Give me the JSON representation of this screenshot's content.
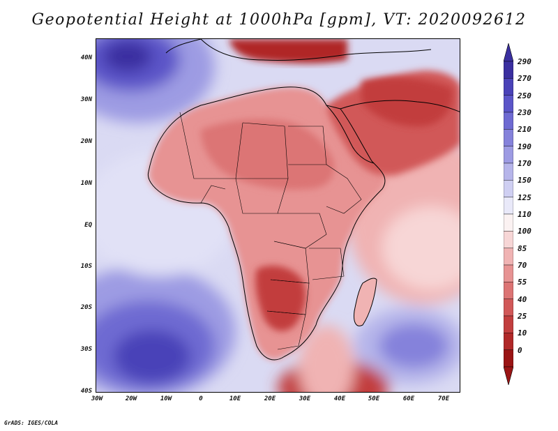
{
  "title": "Geopotential Height at 1000hPa [gpm], VT: 2020092612",
  "credit": "GrADS: IGES/COLA",
  "axes": {
    "y_labels": [
      "40N",
      "30N",
      "20N",
      "10N",
      "EQ",
      "10S",
      "20S",
      "30S",
      "40S"
    ],
    "x_labels": [
      "30W",
      "20W",
      "10W",
      "0",
      "10E",
      "20E",
      "30E",
      "40E",
      "50E",
      "60E",
      "70E"
    ]
  },
  "colorbar": {
    "labels": [
      "290",
      "270",
      "250",
      "230",
      "210",
      "190",
      "170",
      "150",
      "125",
      "110",
      "100",
      "85",
      "70",
      "55",
      "40",
      "25",
      "10",
      "0"
    ],
    "colors": [
      "#3a2fa0",
      "#4a42b8",
      "#5b55c8",
      "#6e6ad2",
      "#8582db",
      "#9d9be3",
      "#b6b5ea",
      "#cfcff2",
      "#e9e9f9",
      "#fbf2f2",
      "#f7d6d6",
      "#f0b3b3",
      "#e79393",
      "#dc7474",
      "#d15858",
      "#c23e3e",
      "#b02828",
      "#9a1414"
    ]
  },
  "map": {
    "region": "Africa and surrounding oceans",
    "lon_range": [
      -30,
      76
    ],
    "lat_range": [
      -40,
      45
    ],
    "field": "Geopotential height 1000hPa",
    "colors": {
      "ocean_base": "#d8d8f2",
      "high_pressure": "#4a42b8",
      "land_low": "#dc7474",
      "coast": "#000000"
    }
  }
}
